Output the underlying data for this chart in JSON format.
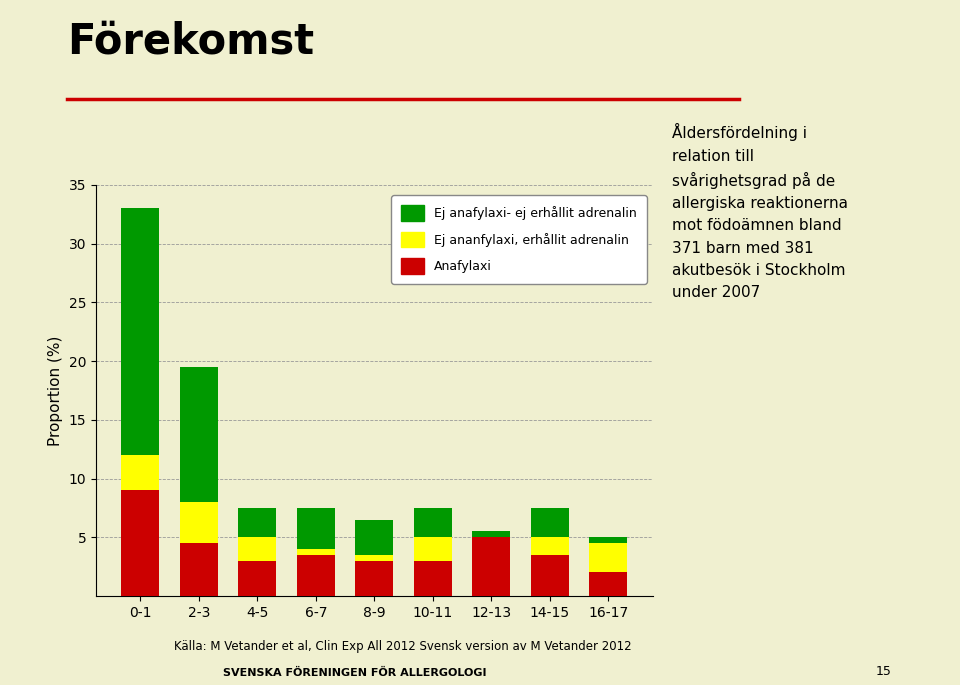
{
  "title": "Förekomst",
  "ylabel": "Proportion (%)",
  "categories": [
    "0-1",
    "2-3",
    "4-5",
    "6-7",
    "8-9",
    "10-11",
    "12-13",
    "14-15",
    "16-17"
  ],
  "green_values": [
    21.0,
    11.5,
    2.5,
    3.5,
    3.0,
    2.5,
    0.5,
    2.5,
    0.5
  ],
  "yellow_values": [
    3.0,
    3.5,
    2.0,
    0.5,
    0.5,
    2.0,
    0.0,
    1.5,
    2.5
  ],
  "red_values": [
    9.0,
    4.5,
    3.0,
    3.5,
    3.0,
    3.0,
    5.0,
    3.5,
    2.0
  ],
  "ylim": [
    0,
    35
  ],
  "yticks": [
    5,
    10,
    15,
    20,
    25,
    30,
    35
  ],
  "color_green": "#009900",
  "color_yellow": "#ffff00",
  "color_red": "#cc0000",
  "legend_labels": [
    "Ej anafylaxi- ej erhållit adrenalin",
    "Ej ananfylaxi, erhållit adrenalin",
    "Anafylaxi"
  ],
  "annotation_text": "Åldersfördelning i\nrelation till\nsvårighetsgrad på de\nallergiska reaktionerna\nmot födoämnen bland\n371 barn med 381\nakutbesök i Stockholm\nunder 2007",
  "source_text": "Källa: M Vetander et al, Clin Exp All 2012 Svensk version av M Vetander 2012",
  "footer_text": "SVENSKA FÖRENINGEN FÖR ALLERGOLOGI",
  "footer_number": "15",
  "background_color": "#f0f0d0",
  "plot_bg_color": "#f0f0d0",
  "bar_width": 0.65,
  "grid_color": "#999999",
  "title_fontsize": 30,
  "axis_fontsize": 11,
  "tick_fontsize": 10,
  "red_line_color": "#cc0000"
}
